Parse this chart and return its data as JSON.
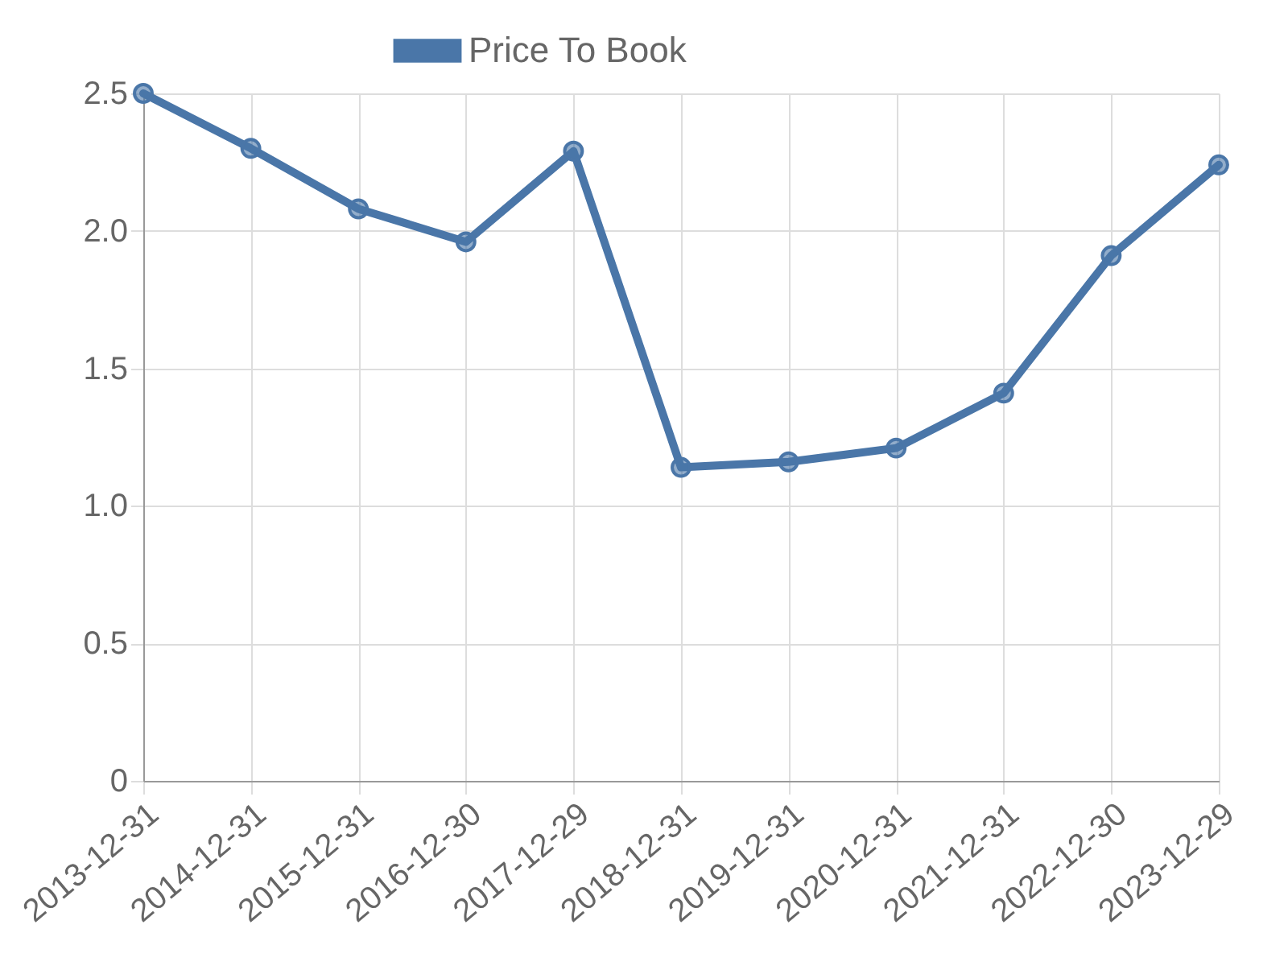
{
  "chart_data": {
    "type": "line",
    "categories": [
      "2013-12-31",
      "2014-12-31",
      "2015-12-31",
      "2016-12-30",
      "2017-12-29",
      "2018-12-31",
      "2019-12-31",
      "2020-12-31",
      "2021-12-31",
      "2022-12-30",
      "2023-12-29"
    ],
    "series": [
      {
        "name": "Price To Book",
        "color": "#4a76a8",
        "values": [
          2.5,
          2.3,
          2.08,
          1.96,
          2.29,
          1.14,
          1.16,
          1.21,
          1.41,
          1.91,
          2.24
        ]
      }
    ],
    "ylim": [
      0,
      2.5
    ],
    "yticks": [
      0,
      0.5,
      {
        "value": 1,
        "label": "1.0"
      },
      1.5,
      {
        "value": 2,
        "label": "2.0"
      },
      2.5
    ],
    "grid": true,
    "legend": "top",
    "marker": "circle",
    "line_style": "solid"
  }
}
